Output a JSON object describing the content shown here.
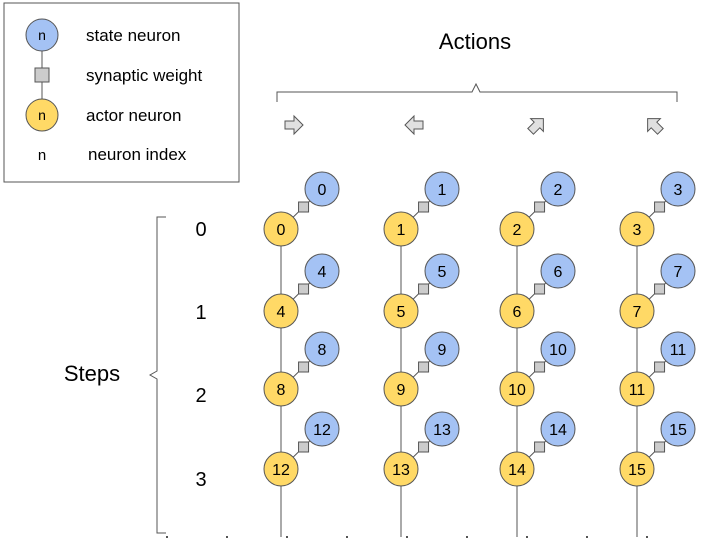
{
  "legend": {
    "items": [
      {
        "symbol": "state-neuron",
        "glyph": "n",
        "label": "state neuron"
      },
      {
        "symbol": "synaptic-weight",
        "glyph": "",
        "label": "synaptic weight"
      },
      {
        "symbol": "actor-neuron",
        "glyph": "n",
        "label": "actor neuron"
      },
      {
        "symbol": "neuron-index",
        "glyph": "n",
        "label": "neuron index"
      }
    ]
  },
  "actions": {
    "title": "Actions",
    "arrows": [
      {
        "icon": "arrow-right-icon",
        "direction": "right"
      },
      {
        "icon": "arrow-left-icon",
        "direction": "left"
      },
      {
        "icon": "arrow-up-right-icon",
        "direction": "up-right"
      },
      {
        "icon": "arrow-up-left-icon",
        "direction": "up-left"
      }
    ]
  },
  "steps": {
    "title": "Steps",
    "labels": [
      "0",
      "1",
      "2",
      "3"
    ]
  },
  "grid": {
    "rows": [
      {
        "actor": [
          "0",
          "1",
          "2",
          "3"
        ],
        "state": [
          "0",
          "1",
          "2",
          "3"
        ]
      },
      {
        "actor": [
          "4",
          "5",
          "6",
          "7"
        ],
        "state": [
          "4",
          "5",
          "6",
          "7"
        ]
      },
      {
        "actor": [
          "8",
          "9",
          "10",
          "11"
        ],
        "state": [
          "8",
          "9",
          "10",
          "11"
        ]
      },
      {
        "actor": [
          "12",
          "13",
          "14",
          "15"
        ],
        "state": [
          "12",
          "13",
          "14",
          "15"
        ]
      }
    ]
  },
  "colors": {
    "state_fill": "#a4c2f4",
    "actor_fill": "#ffd966",
    "stroke": "#555555",
    "weight_fill": "#cccccc"
  }
}
